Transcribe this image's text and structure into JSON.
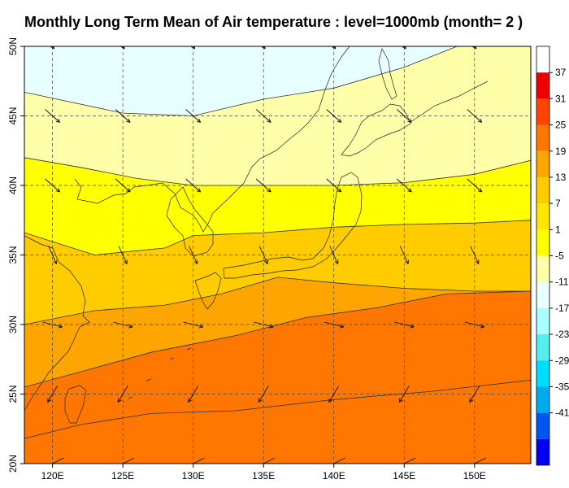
{
  "title": "Monthly Long Term Mean of Air temperature : level=1000mb (month= 2 )",
  "map": {
    "lon_range": [
      118,
      154
    ],
    "lat_range": [
      20,
      50
    ],
    "x_ticks": [
      "120E",
      "125E",
      "130E",
      "135E",
      "140E",
      "145E",
      "150E"
    ],
    "x_tick_values": [
      120,
      125,
      130,
      135,
      140,
      145,
      150
    ],
    "y_ticks": [
      "20N",
      "25N",
      "30N",
      "35N",
      "40N",
      "45N",
      "50N"
    ],
    "y_tick_values": [
      20,
      25,
      30,
      35,
      40,
      45,
      50
    ],
    "grid": "dashed"
  },
  "legend": {
    "labels": [
      "37",
      "31",
      "25",
      "19",
      "13",
      "7",
      "1",
      "-5",
      "-11",
      "-17",
      "-23",
      "-29",
      "-35",
      "-41"
    ],
    "colors": [
      "#ffffff",
      "#ee0000",
      "#ff4400",
      "#ff7700",
      "#ffa500",
      "#ffcc00",
      "#ffe600",
      "#ffff00",
      "#ffffaa",
      "#e8ffff",
      "#aaffff",
      "#55eeee",
      "#00ddff",
      "#00aaee",
      "#0055ee",
      "#0000ee"
    ]
  },
  "chart_data": {
    "type": "heatmap",
    "variable": "Air temperature",
    "level": "1000mb",
    "month": 2,
    "bands": [
      {
        "range": [
          -17,
          -11
        ],
        "color": "#e8ffff",
        "south_boundary_lat": [
          [
            118,
            46.7
          ],
          [
            125,
            45.2
          ],
          [
            130,
            45.0
          ],
          [
            135,
            46.2
          ],
          [
            140,
            47.0
          ],
          [
            145,
            48.5
          ],
          [
            150,
            50.5
          ],
          [
            154,
            51.5
          ]
        ]
      },
      {
        "range": [
          -11,
          -5
        ],
        "color": "#ffffaa",
        "south_boundary_lat": [
          [
            118,
            42.0
          ],
          [
            122,
            41.3
          ],
          [
            126,
            40.5
          ],
          [
            130,
            40.0
          ],
          [
            135,
            40.0
          ],
          [
            140,
            40.0
          ],
          [
            145,
            40.2
          ],
          [
            150,
            40.8
          ],
          [
            154,
            41.8
          ]
        ]
      },
      {
        "range": [
          -5,
          1
        ],
        "color": "#ffff00",
        "south_boundary_lat": [
          [
            118,
            36.6
          ],
          [
            123,
            35.0
          ],
          [
            128,
            35.5
          ],
          [
            130,
            36.4
          ],
          [
            135,
            36.6
          ],
          [
            140,
            37.0
          ],
          [
            145,
            37.2
          ],
          [
            150,
            37.3
          ],
          [
            154,
            37.5
          ]
        ]
      },
      {
        "range": [
          1,
          7
        ],
        "color": "#ffcc00",
        "south_boundary_lat": [
          [
            118,
            30.0
          ],
          [
            123,
            31.0
          ],
          [
            128,
            31.4
          ],
          [
            132,
            32.2
          ],
          [
            136,
            33.4
          ],
          [
            140,
            33.0
          ],
          [
            145,
            32.6
          ],
          [
            150,
            32.4
          ],
          [
            154,
            32.4
          ]
        ]
      },
      {
        "range": [
          7,
          13
        ],
        "color": "#ffa500",
        "south_boundary_lat": [
          [
            118,
            25.5
          ],
          [
            122,
            26.6
          ],
          [
            127,
            28.0
          ],
          [
            133,
            29.2
          ],
          [
            138,
            30.5
          ],
          [
            143,
            31.2
          ],
          [
            148,
            32.2
          ],
          [
            154,
            32.4
          ]
        ]
      },
      {
        "range": [
          13,
          19
        ],
        "color": "#ff7700",
        "south_boundary_lat": [
          [
            118,
            21.8
          ],
          [
            122,
            22.8
          ],
          [
            127,
            23.6
          ],
          [
            133,
            23.8
          ],
          [
            140,
            24.6
          ],
          [
            147,
            25.2
          ],
          [
            154,
            26.0
          ]
        ]
      }
    ],
    "wind_arrows": "sparse arrows on a 5° grid, generally northeast-to-southwest in the north turning westerly/southwesterly in the south"
  }
}
